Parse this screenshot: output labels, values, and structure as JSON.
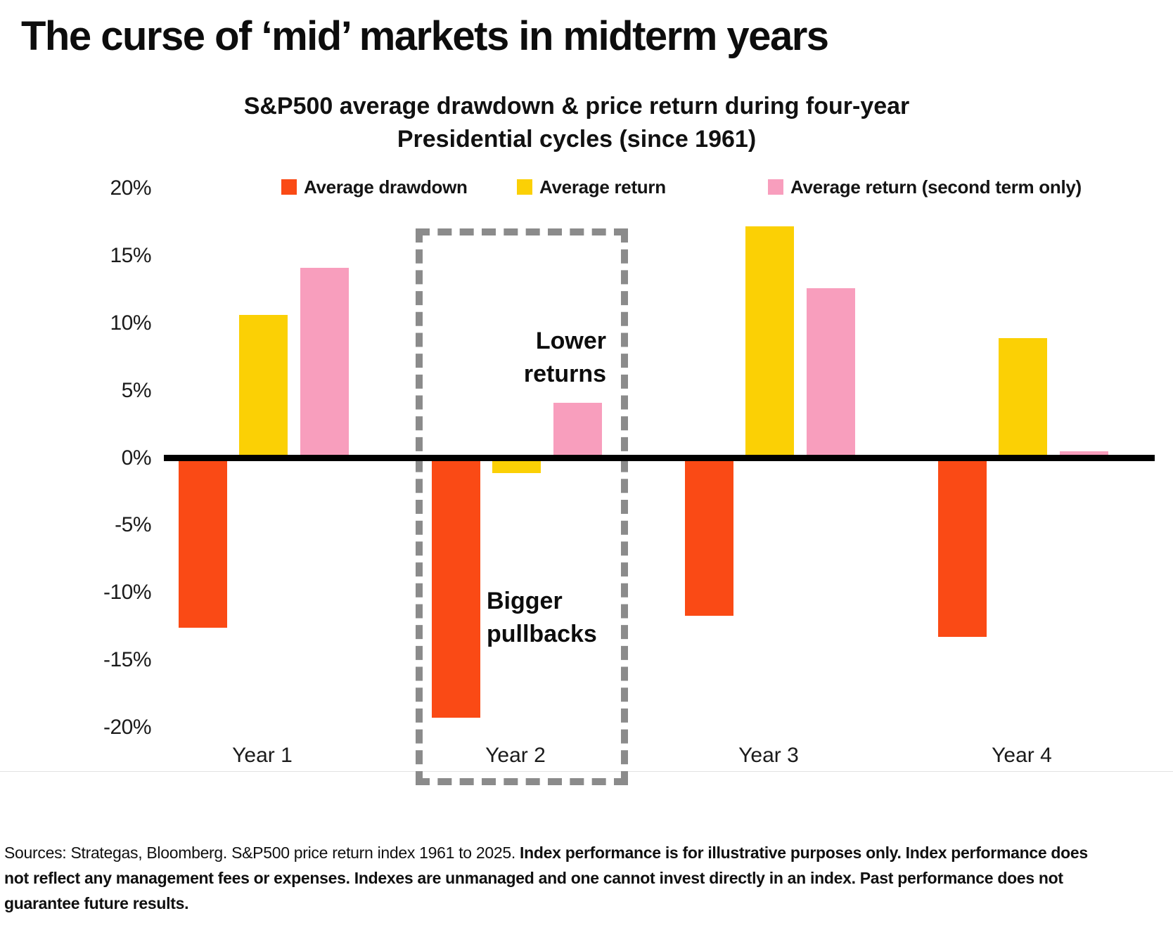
{
  "page": {
    "title": "The curse of ‘mid’ markets in midterm years",
    "footer": {
      "sources_normal": "Sources: Strategas, Bloomberg. S&P500 price return index 1961 to 2025. ",
      "disclaimer_bold": "Index performance is for illustrative purposes only. Index performance does not reflect any management fees or expenses. Indexes are unmanaged and one cannot invest directly in an index. Past performance does not guarantee future results."
    }
  },
  "chart_data": {
    "type": "bar",
    "title_line1": "S&P500 average drawdown & price return during four-year",
    "title_line2": "Presidential cycles (since 1961)",
    "categories": [
      "Year 1",
      "Year 2",
      "Year 3",
      "Year 4"
    ],
    "series": [
      {
        "name": "Average drawdown",
        "color": "#FA4A15",
        "values": [
          -12.6,
          -19.3,
          -11.7,
          -13.3
        ]
      },
      {
        "name": "Average return",
        "color": "#FBD005",
        "values": [
          10.6,
          -1.1,
          17.2,
          8.9
        ]
      },
      {
        "name": "Average return (second term only)",
        "color": "#F89EBD",
        "values": [
          14.1,
          4.1,
          12.6,
          0.5
        ]
      }
    ],
    "y_ticks": [
      "20%",
      "15%",
      "10%",
      "5%",
      "0%",
      "-5%",
      "-10%",
      "-15%",
      "-20%"
    ],
    "y_tick_values": [
      20,
      15,
      10,
      5,
      0,
      -5,
      -10,
      -15,
      -20
    ],
    "ylim": [
      -20,
      20
    ],
    "grid": false,
    "legend_position": "top",
    "axis_color": "#000000",
    "highlight_box": {
      "category": "Year 2",
      "style": "dashed",
      "color": "#8B8B8B"
    },
    "annotations": [
      {
        "line1": "Lower",
        "line2": "returns",
        "target": "Year 2"
      },
      {
        "line1": "Bigger",
        "line2": "pullbacks",
        "target": "Year 2"
      }
    ]
  }
}
